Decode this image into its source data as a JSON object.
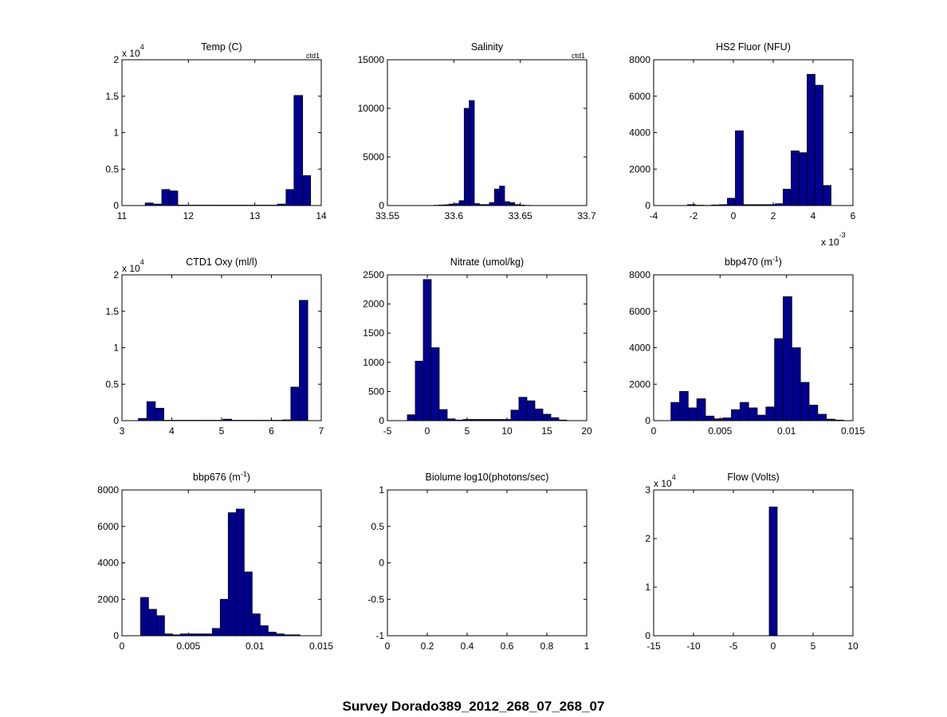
{
  "figure": {
    "suptitle": "Survey Dorado389_2012_268_07_268_07"
  },
  "chart_data": [
    {
      "type": "bar",
      "title": "Temp (C)",
      "title_sup": "",
      "title_tail": "",
      "tag": "ctd1",
      "xlim": [
        11,
        14
      ],
      "ylim": [
        0,
        20000
      ],
      "xticks": [
        "11",
        "12",
        "13",
        "14"
      ],
      "yticks": [
        "0",
        "0.5",
        "1",
        "1.5",
        "2"
      ],
      "y_multiplier": "x 10",
      "y_multiplier_exp": "4",
      "x_multiplier": "",
      "x_multiplier_exp": "",
      "bins": [
        [
          11.35,
          11.47,
          350
        ],
        [
          11.47,
          11.6,
          200
        ],
        [
          11.6,
          11.72,
          2200
        ],
        [
          11.72,
          11.84,
          2000
        ],
        [
          11.84,
          11.97,
          60
        ],
        [
          11.97,
          12.09,
          50
        ],
        [
          12.09,
          12.22,
          50
        ],
        [
          12.22,
          12.34,
          50
        ],
        [
          12.34,
          12.47,
          50
        ],
        [
          12.47,
          12.59,
          50
        ],
        [
          12.59,
          12.72,
          50
        ],
        [
          12.72,
          12.84,
          50
        ],
        [
          12.84,
          12.97,
          50
        ],
        [
          12.97,
          13.09,
          50
        ],
        [
          13.09,
          13.22,
          50
        ],
        [
          13.22,
          13.34,
          50
        ],
        [
          13.34,
          13.47,
          200
        ],
        [
          13.47,
          13.59,
          2200
        ],
        [
          13.59,
          13.72,
          15100
        ],
        [
          13.72,
          13.84,
          4100
        ]
      ]
    },
    {
      "type": "bar",
      "title": "Salinity",
      "title_sup": "",
      "title_tail": "",
      "tag": "ctd1",
      "xlim": [
        33.55,
        33.7
      ],
      "ylim": [
        0,
        15000
      ],
      "xticks": [
        "33.55",
        "33.6",
        "33.65",
        "33.7"
      ],
      "yticks": [
        "0",
        "5000",
        "10000",
        "15000"
      ],
      "y_multiplier": "",
      "y_multiplier_exp": "",
      "x_multiplier": "",
      "x_multiplier_exp": "",
      "bins": [
        [
          33.585,
          33.5888,
          30
        ],
        [
          33.5888,
          33.5926,
          50
        ],
        [
          33.5926,
          33.5964,
          80
        ],
        [
          33.5964,
          33.6002,
          150
        ],
        [
          33.6002,
          33.604,
          200
        ],
        [
          33.604,
          33.6078,
          500
        ],
        [
          33.6078,
          33.6116,
          10000
        ],
        [
          33.6116,
          33.6154,
          10800
        ],
        [
          33.6154,
          33.6192,
          200
        ],
        [
          33.6192,
          33.623,
          100
        ],
        [
          33.623,
          33.6268,
          100
        ],
        [
          33.6268,
          33.6306,
          300
        ],
        [
          33.6306,
          33.6344,
          1700
        ],
        [
          33.6344,
          33.6382,
          2000
        ],
        [
          33.6382,
          33.642,
          400
        ],
        [
          33.642,
          33.6458,
          300
        ],
        [
          33.6458,
          33.6496,
          100
        ],
        [
          33.6496,
          33.6534,
          50
        ],
        [
          33.6534,
          33.6572,
          20
        ],
        [
          33.6572,
          33.661,
          10
        ]
      ]
    },
    {
      "type": "bar",
      "title": "HS2 Fluor (NFU)",
      "title_sup": "",
      "title_tail": "",
      "tag": "",
      "xlim": [
        -0.004,
        0.006
      ],
      "ylim": [
        0,
        8000
      ],
      "xticks": [
        "-4",
        "-2",
        "0",
        "2",
        "4",
        "6"
      ],
      "yticks": [
        "0",
        "2000",
        "4000",
        "6000",
        "8000"
      ],
      "y_multiplier": "",
      "y_multiplier_exp": "",
      "x_multiplier": "x 10",
      "x_multiplier_exp": "-3",
      "bins": [
        [
          -0.0023,
          -0.0019,
          50
        ],
        [
          -0.0019,
          -0.0015,
          20
        ],
        [
          -0.0015,
          -0.0011,
          10
        ],
        [
          -0.0011,
          -0.0007,
          30
        ],
        [
          -0.0007,
          -0.0003,
          50
        ],
        [
          -0.0003,
          0.0001,
          400
        ],
        [
          0.0001,
          0.0005,
          4100
        ],
        [
          0.0005,
          0.0009,
          50
        ],
        [
          0.0009,
          0.0013,
          50
        ],
        [
          0.0013,
          0.0017,
          50
        ],
        [
          0.0017,
          0.0021,
          50
        ],
        [
          0.0021,
          0.0025,
          100
        ],
        [
          0.0025,
          0.0029,
          900
        ],
        [
          0.0029,
          0.0033,
          3000
        ],
        [
          0.0033,
          0.0037,
          2900
        ],
        [
          0.0037,
          0.0041,
          7200
        ],
        [
          0.0041,
          0.0045,
          6600
        ],
        [
          0.0045,
          0.0049,
          1100
        ]
      ]
    },
    {
      "type": "bar",
      "title": "CTD1 Oxy (ml/l)",
      "title_sup": "",
      "title_tail": "",
      "tag": "",
      "xlim": [
        3,
        7
      ],
      "ylim": [
        0,
        20000
      ],
      "xticks": [
        "3",
        "4",
        "5",
        "6",
        "7"
      ],
      "yticks": [
        "0",
        "0.5",
        "1",
        "1.5",
        "2"
      ],
      "y_multiplier": "x 10",
      "y_multiplier_exp": "4",
      "x_multiplier": "",
      "x_multiplier_exp": "",
      "bins": [
        [
          3.33,
          3.5,
          300
        ],
        [
          3.5,
          3.67,
          2600
        ],
        [
          3.67,
          3.84,
          1700
        ],
        [
          3.84,
          4.01,
          50
        ],
        [
          4.01,
          4.18,
          50
        ],
        [
          4.18,
          4.35,
          50
        ],
        [
          4.35,
          4.52,
          50
        ],
        [
          4.52,
          4.69,
          50
        ],
        [
          4.69,
          4.86,
          50
        ],
        [
          4.86,
          5.03,
          50
        ],
        [
          5.03,
          5.2,
          200
        ],
        [
          5.2,
          5.37,
          50
        ],
        [
          5.37,
          5.54,
          50
        ],
        [
          5.54,
          5.71,
          50
        ],
        [
          5.71,
          5.88,
          50
        ],
        [
          5.88,
          6.05,
          50
        ],
        [
          6.05,
          6.22,
          50
        ],
        [
          6.22,
          6.39,
          100
        ],
        [
          6.39,
          6.56,
          4600
        ],
        [
          6.56,
          6.73,
          16500
        ]
      ]
    },
    {
      "type": "bar",
      "title": "Nitrate (umol/kg)",
      "title_sup": "",
      "title_tail": "",
      "tag": "",
      "xlim": [
        -5,
        20
      ],
      "ylim": [
        0,
        2500
      ],
      "xticks": [
        "-5",
        "0",
        "5",
        "10",
        "15",
        "20"
      ],
      "yticks": [
        "0",
        "500",
        "1000",
        "1500",
        "2000",
        "2500"
      ],
      "y_multiplier": "",
      "y_multiplier_exp": "",
      "x_multiplier": "",
      "x_multiplier_exp": "",
      "bins": [
        [
          -2.5,
          -1.5,
          100
        ],
        [
          -1.5,
          -0.5,
          1020
        ],
        [
          -0.5,
          0.5,
          2420
        ],
        [
          0.5,
          1.5,
          1250
        ],
        [
          1.5,
          2.5,
          190
        ],
        [
          2.5,
          3.5,
          30
        ],
        [
          3.5,
          4.5,
          10
        ],
        [
          4.5,
          5.5,
          20
        ],
        [
          5.5,
          6.5,
          20
        ],
        [
          6.5,
          7.5,
          20
        ],
        [
          7.5,
          8.5,
          20
        ],
        [
          8.5,
          9.5,
          20
        ],
        [
          9.5,
          10.5,
          20
        ],
        [
          10.5,
          11.5,
          180
        ],
        [
          11.5,
          12.5,
          400
        ],
        [
          12.5,
          13.5,
          340
        ],
        [
          13.5,
          14.5,
          200
        ],
        [
          14.5,
          15.5,
          110
        ],
        [
          15.5,
          16.5,
          50
        ],
        [
          16.5,
          17.5,
          10
        ]
      ]
    },
    {
      "type": "bar",
      "title": "bbp470 (m",
      "title_sup": "-1",
      "title_tail": ")",
      "tag": "",
      "xlim": [
        0,
        0.015
      ],
      "ylim": [
        0,
        8000
      ],
      "xticks": [
        "0",
        "0.005",
        "0.01",
        "0.015"
      ],
      "yticks": [
        "0",
        "2000",
        "4000",
        "6000",
        "8000"
      ],
      "y_multiplier": "",
      "y_multiplier_exp": "",
      "x_multiplier": "",
      "x_multiplier_exp": "",
      "bins": [
        [
          0.0013,
          0.00195,
          1000
        ],
        [
          0.00195,
          0.0026,
          1600
        ],
        [
          0.0026,
          0.00325,
          700
        ],
        [
          0.00325,
          0.0039,
          1200
        ],
        [
          0.0039,
          0.00455,
          250
        ],
        [
          0.00455,
          0.0052,
          100
        ],
        [
          0.0052,
          0.00585,
          150
        ],
        [
          0.00585,
          0.0065,
          600
        ],
        [
          0.0065,
          0.00715,
          1000
        ],
        [
          0.00715,
          0.0078,
          700
        ],
        [
          0.0078,
          0.00845,
          300
        ],
        [
          0.00845,
          0.0091,
          750
        ],
        [
          0.0091,
          0.00975,
          4500
        ],
        [
          0.00975,
          0.0104,
          6800
        ],
        [
          0.0104,
          0.01105,
          4000
        ],
        [
          0.01105,
          0.0117,
          2100
        ],
        [
          0.0117,
          0.01235,
          850
        ],
        [
          0.01235,
          0.013,
          350
        ],
        [
          0.013,
          0.01365,
          80
        ],
        [
          0.01365,
          0.0143,
          30
        ]
      ]
    },
    {
      "type": "bar",
      "title": "bbp676 (m",
      "title_sup": "-1",
      "title_tail": ")",
      "tag": "",
      "xlim": [
        0,
        0.015
      ],
      "ylim": [
        0,
        8000
      ],
      "xticks": [
        "0",
        "0.005",
        "0.01",
        "0.015"
      ],
      "yticks": [
        "0",
        "2000",
        "4000",
        "6000",
        "8000"
      ],
      "y_multiplier": "",
      "y_multiplier_exp": "",
      "x_multiplier": "",
      "x_multiplier_exp": "",
      "bins": [
        [
          0.0014,
          0.002,
          2100
        ],
        [
          0.002,
          0.0026,
          1450
        ],
        [
          0.0026,
          0.0032,
          1100
        ],
        [
          0.0032,
          0.0038,
          100
        ],
        [
          0.0038,
          0.0044,
          50
        ],
        [
          0.0044,
          0.005,
          100
        ],
        [
          0.005,
          0.0056,
          100
        ],
        [
          0.0056,
          0.0062,
          100
        ],
        [
          0.0062,
          0.0068,
          100
        ],
        [
          0.0068,
          0.0074,
          400
        ],
        [
          0.0074,
          0.008,
          2000
        ],
        [
          0.008,
          0.0086,
          6750
        ],
        [
          0.0086,
          0.0092,
          6950
        ],
        [
          0.0092,
          0.0098,
          3500
        ],
        [
          0.0098,
          0.0104,
          1200
        ],
        [
          0.0104,
          0.011,
          550
        ],
        [
          0.011,
          0.0116,
          200
        ],
        [
          0.0116,
          0.0122,
          100
        ],
        [
          0.0122,
          0.0128,
          50
        ],
        [
          0.0128,
          0.0134,
          50
        ]
      ]
    },
    {
      "type": "bar",
      "title": "Biolume log10(photons/sec)",
      "title_sup": "",
      "title_tail": "",
      "tag": "",
      "xlim": [
        0,
        1
      ],
      "ylim": [
        -1,
        1
      ],
      "xticks": [
        "0",
        "0.2",
        "0.4",
        "0.6",
        "0.8",
        "1"
      ],
      "yticks": [
        "-1",
        "-0.5",
        "0",
        "0.5",
        "1"
      ],
      "y_multiplier": "",
      "y_multiplier_exp": "",
      "x_multiplier": "",
      "x_multiplier_exp": "",
      "bins": []
    },
    {
      "type": "bar",
      "title": "Flow (Volts)",
      "title_sup": "",
      "title_tail": "",
      "tag": "",
      "xlim": [
        -15,
        10
      ],
      "ylim": [
        0,
        30000
      ],
      "xticks": [
        "-15",
        "-10",
        "-5",
        "0",
        "5",
        "10"
      ],
      "yticks": [
        "0",
        "1",
        "2",
        "3"
      ],
      "y_multiplier": "x 10",
      "y_multiplier_exp": "4",
      "x_multiplier": "",
      "x_multiplier_exp": "",
      "bins": [
        [
          -0.5,
          0.5,
          26500
        ]
      ]
    }
  ],
  "colors": {
    "bar_fill": "#00008f",
    "bar_edge": "#000000",
    "axis": "#000000",
    "background": "#ffffff"
  }
}
